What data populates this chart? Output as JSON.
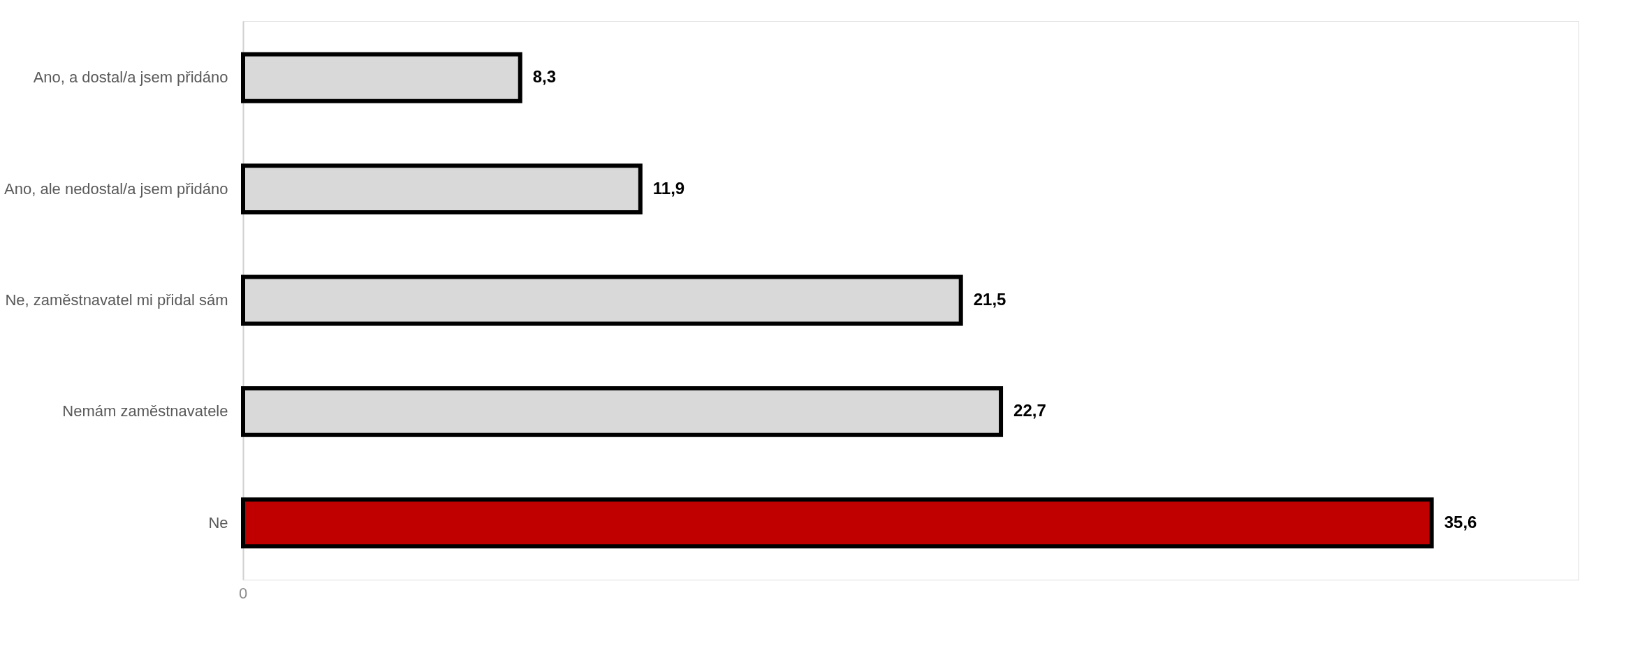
{
  "chart_data": {
    "type": "bar",
    "orientation": "horizontal",
    "categories": [
      "Ano, a dostal/a jsem přidáno",
      "Ano, ale nedostal/a jsem přidáno",
      "Ne, zaměstnavatel mi přidal sám",
      "Nemám zaměstnavatele",
      "Ne"
    ],
    "values": [
      8.3,
      11.9,
      21.5,
      22.7,
      35.6
    ],
    "colors": [
      "#d9d9d9",
      "#d9d9d9",
      "#d9d9d9",
      "#d9d9d9",
      "#c00000"
    ],
    "value_labels": [
      "8,3",
      "11,9",
      "21,5",
      "22,7",
      "35,6"
    ],
    "xlim": [
      0,
      40
    ],
    "annotations": [
      "0"
    ],
    "grid": false
  }
}
